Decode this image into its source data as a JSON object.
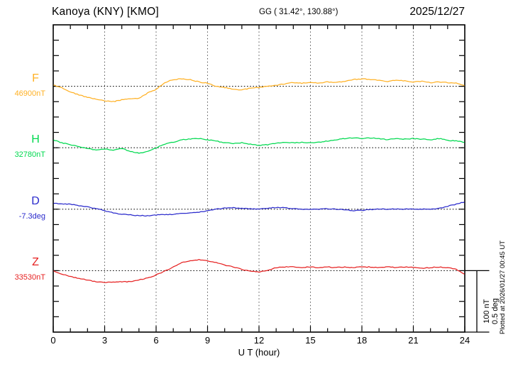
{
  "header": {
    "title": "Kanoya (KNY)  [KMO]",
    "coordinates": "GG ( 31.42°, 130.88°)",
    "date": "2025/12/27"
  },
  "axis": {
    "x_label": "U T (hour)",
    "x_ticks": [
      0,
      3,
      6,
      9,
      12,
      15,
      18,
      21,
      24
    ],
    "x_range": [
      0,
      24
    ]
  },
  "scale_bar": {
    "line1": "100 nT",
    "line2": "0.5 deg"
  },
  "footer": {
    "plotted_at": "Plotted at 2026/01/27 00:45 UT"
  },
  "colors": {
    "frame": "#000000",
    "grid": "#555555",
    "baseline": "#1a1a1a"
  },
  "chart_data": {
    "type": "line",
    "x_unit": "hour (UT)",
    "x": [
      0,
      0.5,
      1,
      1.5,
      2,
      2.5,
      3,
      3.5,
      4,
      4.5,
      5,
      5.5,
      6,
      6.5,
      7,
      7.5,
      8,
      8.5,
      9,
      9.5,
      10,
      10.5,
      11,
      11.5,
      12,
      12.5,
      13,
      13.5,
      14,
      14.5,
      15,
      15.5,
      16,
      16.5,
      17,
      17.5,
      18,
      18.5,
      19,
      19.5,
      20,
      20.5,
      21,
      21.5,
      22,
      22.5,
      23,
      23.5,
      24
    ],
    "grid": "dotted vertical every 3 h; dotted horizontal baseline per component",
    "scale": {
      "nT_per_scalebar": 100,
      "deg_per_scalebar": 0.5
    },
    "series": [
      {
        "name": "F",
        "unit": "nT",
        "base_value": 46900,
        "base_label": "46900nT",
        "color": "#FFB125",
        "offsets": [
          2,
          -2,
          -9,
          -14,
          -18,
          -21,
          -24,
          -25,
          -22,
          -20,
          -20,
          -11,
          -5,
          6,
          11,
          12,
          11,
          7,
          5,
          0,
          -2,
          -5,
          -6,
          -3,
          -2,
          0,
          2,
          4,
          6,
          5,
          6,
          5,
          7,
          6,
          8,
          11,
          12,
          11,
          10,
          8,
          10,
          9,
          7,
          8,
          6,
          7,
          6,
          5,
          1
        ]
      },
      {
        "name": "H",
        "unit": "nT",
        "base_value": 32780,
        "base_label": "32780nT",
        "color": "#00D94F",
        "offsets": [
          13,
          8,
          5,
          2,
          -1,
          -4,
          -2,
          -4,
          -1,
          -6,
          -9,
          -6,
          0,
          6,
          9,
          13,
          14,
          15,
          13,
          11,
          8,
          7,
          8,
          6,
          4,
          5,
          7,
          9,
          8,
          9,
          8,
          9,
          11,
          13,
          15,
          16,
          15,
          16,
          15,
          13,
          15,
          14,
          15,
          14,
          13,
          15,
          12,
          11,
          9
        ]
      },
      {
        "name": "D",
        "unit": "deg",
        "base_value": -7.3,
        "base_label": "-7.3deg",
        "color": "#2A2ACC",
        "offsets": [
          0.047,
          0.044,
          0.041,
          0.029,
          0.018,
          0.006,
          -0.012,
          -0.029,
          -0.041,
          -0.047,
          -0.053,
          -0.053,
          -0.047,
          -0.044,
          -0.041,
          -0.035,
          -0.029,
          -0.024,
          -0.012,
          0,
          0.009,
          0.012,
          0.006,
          0.003,
          0.003,
          0.006,
          0.015,
          0.012,
          0.003,
          0,
          0,
          0,
          0.003,
          0,
          -0.003,
          -0.012,
          -0.009,
          -0.003,
          0,
          0,
          0.003,
          0,
          0.003,
          0,
          0,
          0.006,
          0.024,
          0.041,
          0.059
        ]
      },
      {
        "name": "Z",
        "unit": "nT",
        "base_value": 33530,
        "base_label": "33530nT",
        "color": "#E62222",
        "offsets": [
          0,
          -6,
          -9,
          -13,
          -15,
          -18,
          -19,
          -19,
          -18,
          -18,
          -15,
          -12,
          -7,
          -1,
          6,
          13,
          16,
          18,
          16,
          13,
          9,
          6,
          2,
          -1,
          -2,
          0,
          5,
          6,
          6,
          5,
          6,
          5,
          6,
          5,
          6,
          5,
          6,
          6,
          5,
          6,
          5,
          6,
          5,
          4,
          5,
          6,
          5,
          2,
          -6
        ]
      }
    ]
  }
}
